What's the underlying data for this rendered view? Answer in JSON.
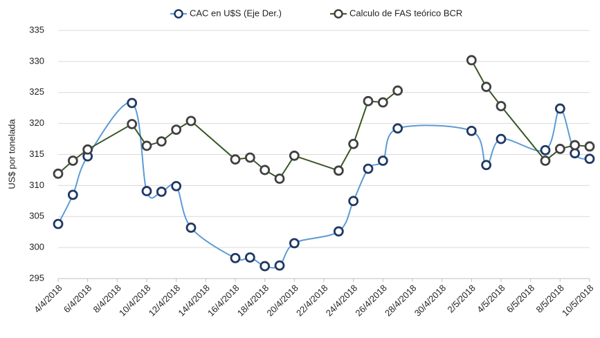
{
  "chart_data": {
    "type": "line",
    "ylabel": "US$ por tonelada",
    "ylim": [
      295,
      335
    ],
    "yticks": [
      295,
      300,
      305,
      310,
      315,
      320,
      325,
      330,
      335
    ],
    "grid": true,
    "xlim": [
      "4/4/2018",
      "10/5/2018"
    ],
    "xticks": [
      "4/4/2018",
      "6/4/2018",
      "8/4/2018",
      "10/4/2018",
      "12/4/2018",
      "14/4/2018",
      "16/4/2018",
      "18/4/2018",
      "20/4/2018",
      "22/4/2018",
      "24/4/2018",
      "26/4/2018",
      "28/4/2018",
      "30/4/2018",
      "2/5/2018",
      "4/5/2018",
      "6/5/2018",
      "8/5/2018",
      "10/5/2018"
    ],
    "legend": "top",
    "series": [
      {
        "name": "CAC en U$S (Eje Der.)",
        "color": "#5b9bd5",
        "marker_color": "#1f3864",
        "smooth": true,
        "x": [
          "4/4/2018",
          "5/4/2018",
          "6/4/2018",
          "9/4/2018",
          "10/4/2018",
          "11/4/2018",
          "12/4/2018",
          "13/4/2018",
          "16/4/2018",
          "17/4/2018",
          "18/4/2018",
          "19/4/2018",
          "20/4/2018",
          "23/4/2018",
          "24/4/2018",
          "25/4/2018",
          "26/4/2018",
          "27/4/2018",
          "2/5/2018",
          "3/5/2018",
          "4/5/2018",
          "7/5/2018",
          "8/5/2018",
          "9/5/2018",
          "10/5/2018"
        ],
        "values": [
          303.8,
          308.5,
          314.7,
          323.3,
          309.1,
          309.0,
          309.9,
          303.2,
          298.3,
          298.4,
          297.0,
          297.1,
          300.7,
          302.6,
          307.5,
          312.7,
          314.0,
          319.2,
          318.8,
          313.3,
          317.5,
          315.7,
          322.4,
          315.2,
          314.3
        ]
      },
      {
        "name": "Calculo de FAS teórico BCR",
        "color": "#375623",
        "marker_color": "#404040",
        "smooth": false,
        "x": [
          "4/4/2018",
          "5/4/2018",
          "6/4/2018",
          "9/4/2018",
          "10/4/2018",
          "11/4/2018",
          "12/4/2018",
          "13/4/2018",
          "16/4/2018",
          "17/4/2018",
          "18/4/2018",
          "19/4/2018",
          "20/4/2018",
          "23/4/2018",
          "24/4/2018",
          "25/4/2018",
          "26/4/2018",
          "27/4/2018",
          "30/4/2018",
          "2/5/2018",
          "3/5/2018",
          "4/5/2018",
          "7/5/2018",
          "8/5/2018",
          "9/5/2018",
          "10/5/2018"
        ],
        "values": [
          311.9,
          314.0,
          315.8,
          319.9,
          316.4,
          317.1,
          319.0,
          320.4,
          314.2,
          314.5,
          312.5,
          311.1,
          314.8,
          312.4,
          316.7,
          323.6,
          323.4,
          325.3,
          null,
          330.2,
          325.9,
          322.8,
          314.0,
          315.9,
          316.5,
          316.3
        ]
      }
    ]
  }
}
